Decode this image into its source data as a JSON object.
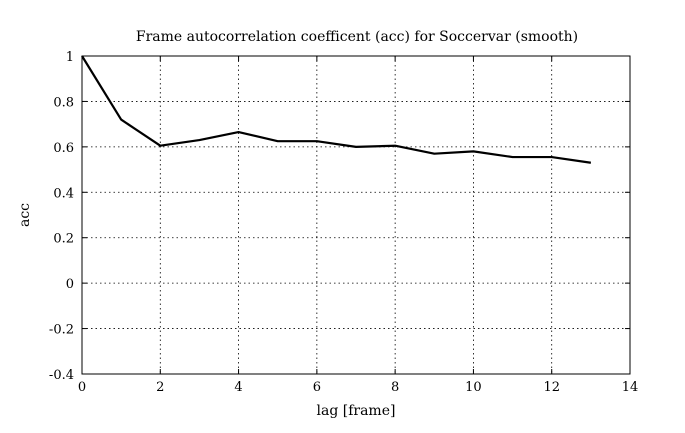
{
  "chart_data": {
    "type": "line",
    "title": "Frame autocorrelation coefficent (acc) for Soccervar (smooth)",
    "xlabel": "lag [frame]",
    "ylabel": "acc",
    "xlim": [
      0,
      14
    ],
    "ylim": [
      -0.4,
      1
    ],
    "xticks": [
      0,
      2,
      4,
      6,
      8,
      10,
      12,
      14
    ],
    "xtick_labels": [
      "0",
      "2",
      "4",
      "6",
      "8",
      "10",
      "12",
      "14"
    ],
    "yticks": [
      -0.4,
      -0.2,
      0,
      0.2,
      0.4,
      0.6,
      0.8,
      1
    ],
    "ytick_labels": [
      "-0.4",
      "-0.2",
      "0",
      "0.2",
      "0.4",
      "0.6",
      "0.8",
      "1"
    ],
    "grid": true,
    "line_color": "#000000",
    "series": [
      {
        "x": [
          0,
          1,
          2,
          3,
          4,
          5,
          6,
          7,
          8,
          9,
          10,
          11,
          12,
          13
        ],
        "values": [
          1.0,
          0.72,
          0.605,
          0.63,
          0.665,
          0.625,
          0.625,
          0.6,
          0.605,
          0.57,
          0.58,
          0.555,
          0.555,
          0.53
        ]
      }
    ]
  }
}
